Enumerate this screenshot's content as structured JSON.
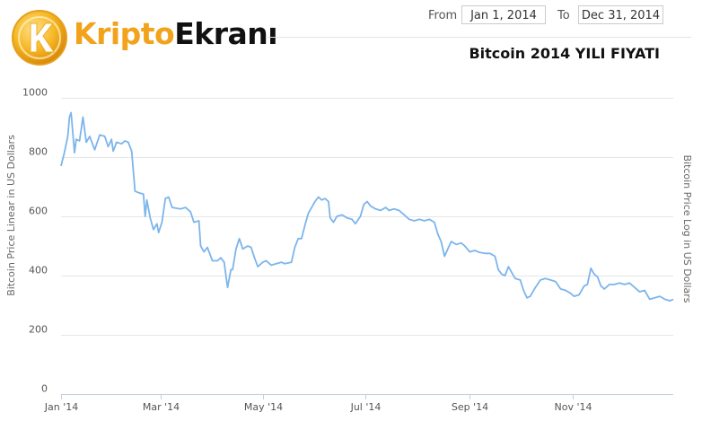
{
  "brand": {
    "prefix": "Kripto",
    "suffix": "Ekranı"
  },
  "range": {
    "from_label": "From",
    "from_value": "Jan 1, 2014",
    "to_label": "To",
    "to_value": "Dec 31, 2014"
  },
  "colors": {
    "line": "#7cb5ec",
    "grid": "#e6e6e6",
    "brand_orange": "#f2a31b"
  },
  "chart_data": {
    "type": "line",
    "title": "Bitcoin 2014 YILI FIYATI",
    "ylabel": "Bitcoin Price Linear in US Dollars",
    "ylabel_right": "Bitcoin Price Log in US Dollars",
    "xlim": [
      "2014-01-01",
      "2014-12-31"
    ],
    "ylim": [
      0,
      1000
    ],
    "y_ticks": [
      0,
      200,
      400,
      600,
      800,
      1000
    ],
    "x_ticks": [
      {
        "date": "2014-01-01",
        "label": "Jan '14"
      },
      {
        "date": "2014-03-01",
        "label": "Mar '14"
      },
      {
        "date": "2014-05-01",
        "label": "May '14"
      },
      {
        "date": "2014-07-01",
        "label": "Jul '14"
      },
      {
        "date": "2014-09-01",
        "label": "Sep '14"
      },
      {
        "date": "2014-11-01",
        "label": "Nov '14"
      }
    ],
    "grid": true,
    "series": [
      {
        "color": "#7cb5ec",
        "points": [
          [
            "2014-01-01",
            770
          ],
          [
            "2014-01-03",
            815
          ],
          [
            "2014-01-05",
            870
          ],
          [
            "2014-01-06",
            935
          ],
          [
            "2014-01-07",
            950
          ],
          [
            "2014-01-09",
            815
          ],
          [
            "2014-01-10",
            860
          ],
          [
            "2014-01-12",
            855
          ],
          [
            "2014-01-14",
            935
          ],
          [
            "2014-01-16",
            850
          ],
          [
            "2014-01-18",
            870
          ],
          [
            "2014-01-21",
            825
          ],
          [
            "2014-01-24",
            875
          ],
          [
            "2014-01-27",
            870
          ],
          [
            "2014-01-29",
            835
          ],
          [
            "2014-01-31",
            860
          ],
          [
            "2014-02-01",
            820
          ],
          [
            "2014-02-03",
            850
          ],
          [
            "2014-02-06",
            845
          ],
          [
            "2014-02-08",
            855
          ],
          [
            "2014-02-10",
            850
          ],
          [
            "2014-02-12",
            820
          ],
          [
            "2014-02-14",
            685
          ],
          [
            "2014-02-16",
            680
          ],
          [
            "2014-02-19",
            675
          ],
          [
            "2014-02-20",
            600
          ],
          [
            "2014-02-21",
            655
          ],
          [
            "2014-02-23",
            595
          ],
          [
            "2014-02-25",
            555
          ],
          [
            "2014-02-27",
            575
          ],
          [
            "2014-02-28",
            545
          ],
          [
            "2014-03-02",
            580
          ],
          [
            "2014-03-04",
            660
          ],
          [
            "2014-03-06",
            665
          ],
          [
            "2014-03-08",
            630
          ],
          [
            "2014-03-10",
            628
          ],
          [
            "2014-03-13",
            625
          ],
          [
            "2014-03-16",
            630
          ],
          [
            "2014-03-19",
            615
          ],
          [
            "2014-03-21",
            580
          ],
          [
            "2014-03-24",
            585
          ],
          [
            "2014-03-25",
            500
          ],
          [
            "2014-03-27",
            480
          ],
          [
            "2014-03-29",
            495
          ],
          [
            "2014-04-01",
            450
          ],
          [
            "2014-04-04",
            450
          ],
          [
            "2014-04-06",
            460
          ],
          [
            "2014-04-08",
            445
          ],
          [
            "2014-04-10",
            360
          ],
          [
            "2014-04-12",
            420
          ],
          [
            "2014-04-13",
            420
          ],
          [
            "2014-04-15",
            490
          ],
          [
            "2014-04-17",
            525
          ],
          [
            "2014-04-19",
            490
          ],
          [
            "2014-04-22",
            500
          ],
          [
            "2014-04-24",
            495
          ],
          [
            "2014-04-26",
            460
          ],
          [
            "2014-04-28",
            430
          ],
          [
            "2014-05-01",
            445
          ],
          [
            "2014-05-03",
            450
          ],
          [
            "2014-05-06",
            435
          ],
          [
            "2014-05-09",
            440
          ],
          [
            "2014-05-12",
            445
          ],
          [
            "2014-05-14",
            440
          ],
          [
            "2014-05-18",
            445
          ],
          [
            "2014-05-20",
            495
          ],
          [
            "2014-05-22",
            525
          ],
          [
            "2014-05-24",
            525
          ],
          [
            "2014-05-26",
            570
          ],
          [
            "2014-05-28",
            610
          ],
          [
            "2014-05-30",
            630
          ],
          [
            "2014-06-01",
            650
          ],
          [
            "2014-06-03",
            665
          ],
          [
            "2014-06-05",
            655
          ],
          [
            "2014-06-07",
            660
          ],
          [
            "2014-06-09",
            650
          ],
          [
            "2014-06-10",
            595
          ],
          [
            "2014-06-12",
            580
          ],
          [
            "2014-06-14",
            600
          ],
          [
            "2014-06-17",
            605
          ],
          [
            "2014-06-20",
            595
          ],
          [
            "2014-06-23",
            590
          ],
          [
            "2014-06-25",
            575
          ],
          [
            "2014-06-28",
            600
          ],
          [
            "2014-06-30",
            640
          ],
          [
            "2014-07-02",
            650
          ],
          [
            "2014-07-04",
            635
          ],
          [
            "2014-07-07",
            625
          ],
          [
            "2014-07-10",
            620
          ],
          [
            "2014-07-13",
            630
          ],
          [
            "2014-07-15",
            620
          ],
          [
            "2014-07-18",
            625
          ],
          [
            "2014-07-21",
            620
          ],
          [
            "2014-07-24",
            605
          ],
          [
            "2014-07-27",
            590
          ],
          [
            "2014-07-30",
            585
          ],
          [
            "2014-08-02",
            590
          ],
          [
            "2014-08-05",
            585
          ],
          [
            "2014-08-08",
            590
          ],
          [
            "2014-08-11",
            580
          ],
          [
            "2014-08-13",
            540
          ],
          [
            "2014-08-15",
            515
          ],
          [
            "2014-08-17",
            465
          ],
          [
            "2014-08-19",
            490
          ],
          [
            "2014-08-21",
            515
          ],
          [
            "2014-08-24",
            505
          ],
          [
            "2014-08-27",
            510
          ],
          [
            "2014-08-29",
            500
          ],
          [
            "2014-09-01",
            480
          ],
          [
            "2014-09-04",
            485
          ],
          [
            "2014-09-07",
            478
          ],
          [
            "2014-09-10",
            475
          ],
          [
            "2014-09-13",
            475
          ],
          [
            "2014-09-16",
            465
          ],
          [
            "2014-09-18",
            420
          ],
          [
            "2014-09-20",
            405
          ],
          [
            "2014-09-22",
            400
          ],
          [
            "2014-09-24",
            430
          ],
          [
            "2014-09-26",
            410
          ],
          [
            "2014-09-28",
            390
          ],
          [
            "2014-10-01",
            385
          ],
          [
            "2014-10-03",
            350
          ],
          [
            "2014-10-05",
            325
          ],
          [
            "2014-10-07",
            330
          ],
          [
            "2014-10-10",
            360
          ],
          [
            "2014-10-13",
            385
          ],
          [
            "2014-10-16",
            390
          ],
          [
            "2014-10-19",
            385
          ],
          [
            "2014-10-22",
            380
          ],
          [
            "2014-10-25",
            355
          ],
          [
            "2014-10-28",
            350
          ],
          [
            "2014-10-31",
            340
          ],
          [
            "2014-11-02",
            330
          ],
          [
            "2014-11-05",
            335
          ],
          [
            "2014-11-08",
            365
          ],
          [
            "2014-11-10",
            370
          ],
          [
            "2014-11-12",
            425
          ],
          [
            "2014-11-14",
            405
          ],
          [
            "2014-11-16",
            395
          ],
          [
            "2014-11-18",
            365
          ],
          [
            "2014-11-20",
            355
          ],
          [
            "2014-11-23",
            370
          ],
          [
            "2014-11-26",
            370
          ],
          [
            "2014-11-29",
            375
          ],
          [
            "2014-12-02",
            370
          ],
          [
            "2014-12-05",
            375
          ],
          [
            "2014-12-08",
            360
          ],
          [
            "2014-12-11",
            345
          ],
          [
            "2014-12-14",
            350
          ],
          [
            "2014-12-17",
            320
          ],
          [
            "2014-12-20",
            325
          ],
          [
            "2014-12-23",
            330
          ],
          [
            "2014-12-26",
            320
          ],
          [
            "2014-12-29",
            315
          ],
          [
            "2014-12-31",
            320
          ]
        ]
      }
    ]
  }
}
